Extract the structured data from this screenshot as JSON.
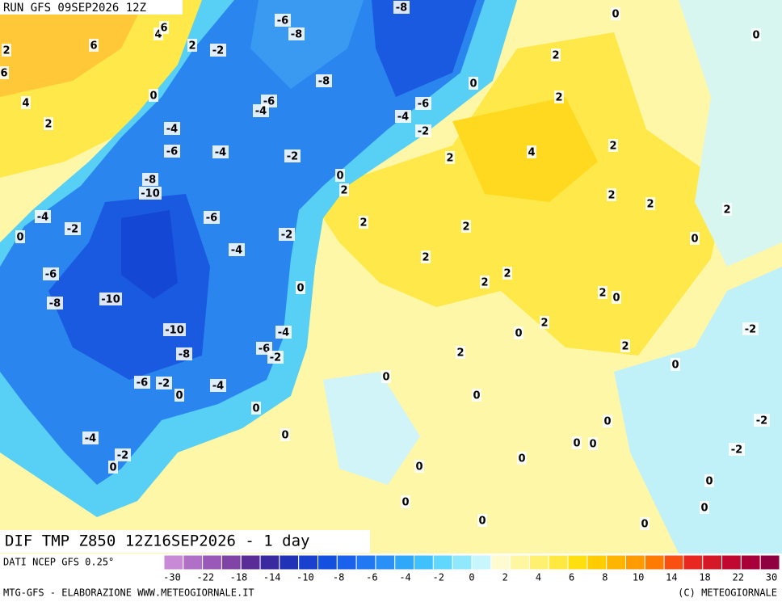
{
  "map": {
    "header": "RUN GFS 09SEP2026 12Z",
    "title": "DIF TMP Z850 12Z16SEP2026 - 1 day",
    "source": "DATI NCEP GFS 0.25°",
    "credit_left": "MTG-GFS - ELABORAZIONE WWW.METEOGIORNALE.IT",
    "credit_right": "(C) METEOGIORNALE",
    "scale_colors": [
      "#c88ad6",
      "#b070c8",
      "#9a58b8",
      "#8044a8",
      "#5a2c98",
      "#3a2aa0",
      "#2232b8",
      "#1a40d0",
      "#1450e0",
      "#1a62ec",
      "#2078f2",
      "#2890f6",
      "#30a8fa",
      "#40c0fc",
      "#60d8fe",
      "#90e8fe",
      "#c8f6ff",
      "#fffbd0",
      "#fff7a0",
      "#fff070",
      "#ffe840",
      "#ffdf10",
      "#ffcc00",
      "#ffb400",
      "#ff9a00",
      "#ff7a00",
      "#f85010",
      "#e82820",
      "#d41828",
      "#c00830",
      "#a80038",
      "#900040"
    ],
    "scale_ticks": [
      -30,
      -22,
      -18,
      -14,
      -10,
      -8,
      -6,
      -4,
      -2,
      0,
      2,
      4,
      6,
      8,
      10,
      14,
      18,
      22,
      30
    ],
    "contour_labels": [
      4,
      6,
      2,
      -2,
      6,
      2,
      6,
      4,
      2,
      0,
      -6,
      -8,
      -8,
      -6,
      -4,
      -4,
      -6,
      -4,
      -2,
      -8,
      -10,
      -6,
      -4,
      -2,
      0,
      -2,
      -4,
      -6,
      -8,
      -10,
      0,
      -10,
      -8,
      -4,
      -6,
      -2,
      -6,
      -2,
      0,
      -4,
      0,
      0,
      -4,
      -2,
      0,
      -8,
      0,
      -6,
      -4,
      -2,
      2,
      0,
      2,
      2,
      2,
      2,
      4,
      2,
      2,
      2,
      2,
      0,
      2,
      2,
      2,
      2,
      2,
      0,
      2,
      0,
      2,
      2,
      0,
      0,
      0,
      0,
      0,
      0,
      0,
      0,
      0,
      0,
      0,
      0,
      -2,
      -2,
      0,
      -2,
      0,
      0
    ]
  }
}
